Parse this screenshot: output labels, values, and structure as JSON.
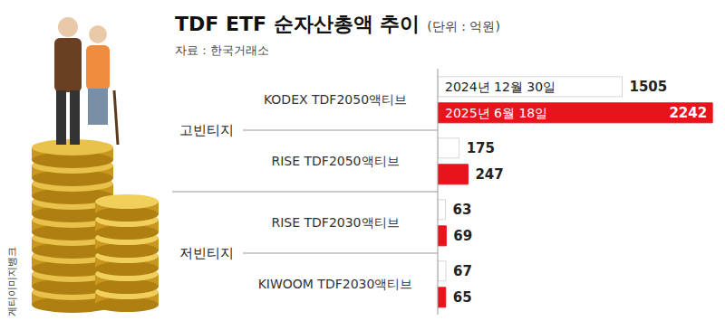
{
  "chart_data": {
    "type": "bar",
    "orientation": "horizontal",
    "title": "TDF ETF 순자산총액 추이",
    "unit": "(단위 : 억원)",
    "source": "자료 : 한국거래소",
    "image_credit": "게티이미지뱅크",
    "categories": [
      "KODEX TDF2050액티브",
      "RISE TDF2050액티브",
      "RISE TDF2030액티브",
      "KIWOOM TDF2030액티브"
    ],
    "groups": [
      {
        "name": "고빈티지",
        "categories": [
          "KODEX TDF2050액티브",
          "RISE TDF2050액티브"
        ]
      },
      {
        "name": "저빈티지",
        "categories": [
          "RISE TDF2030액티브",
          "KIWOOM TDF2030액티브"
        ]
      }
    ],
    "series": [
      {
        "name": "2024년 12월 30일",
        "color": "#ffffff",
        "values": [
          1505,
          175,
          63,
          67
        ]
      },
      {
        "name": "2025년 6월 18일",
        "color": "#e8141c",
        "values": [
          2242,
          247,
          69,
          65
        ]
      }
    ],
    "xlim": [
      0,
      2300
    ],
    "tick_labels": false,
    "data_labels": true,
    "grid": false
  }
}
